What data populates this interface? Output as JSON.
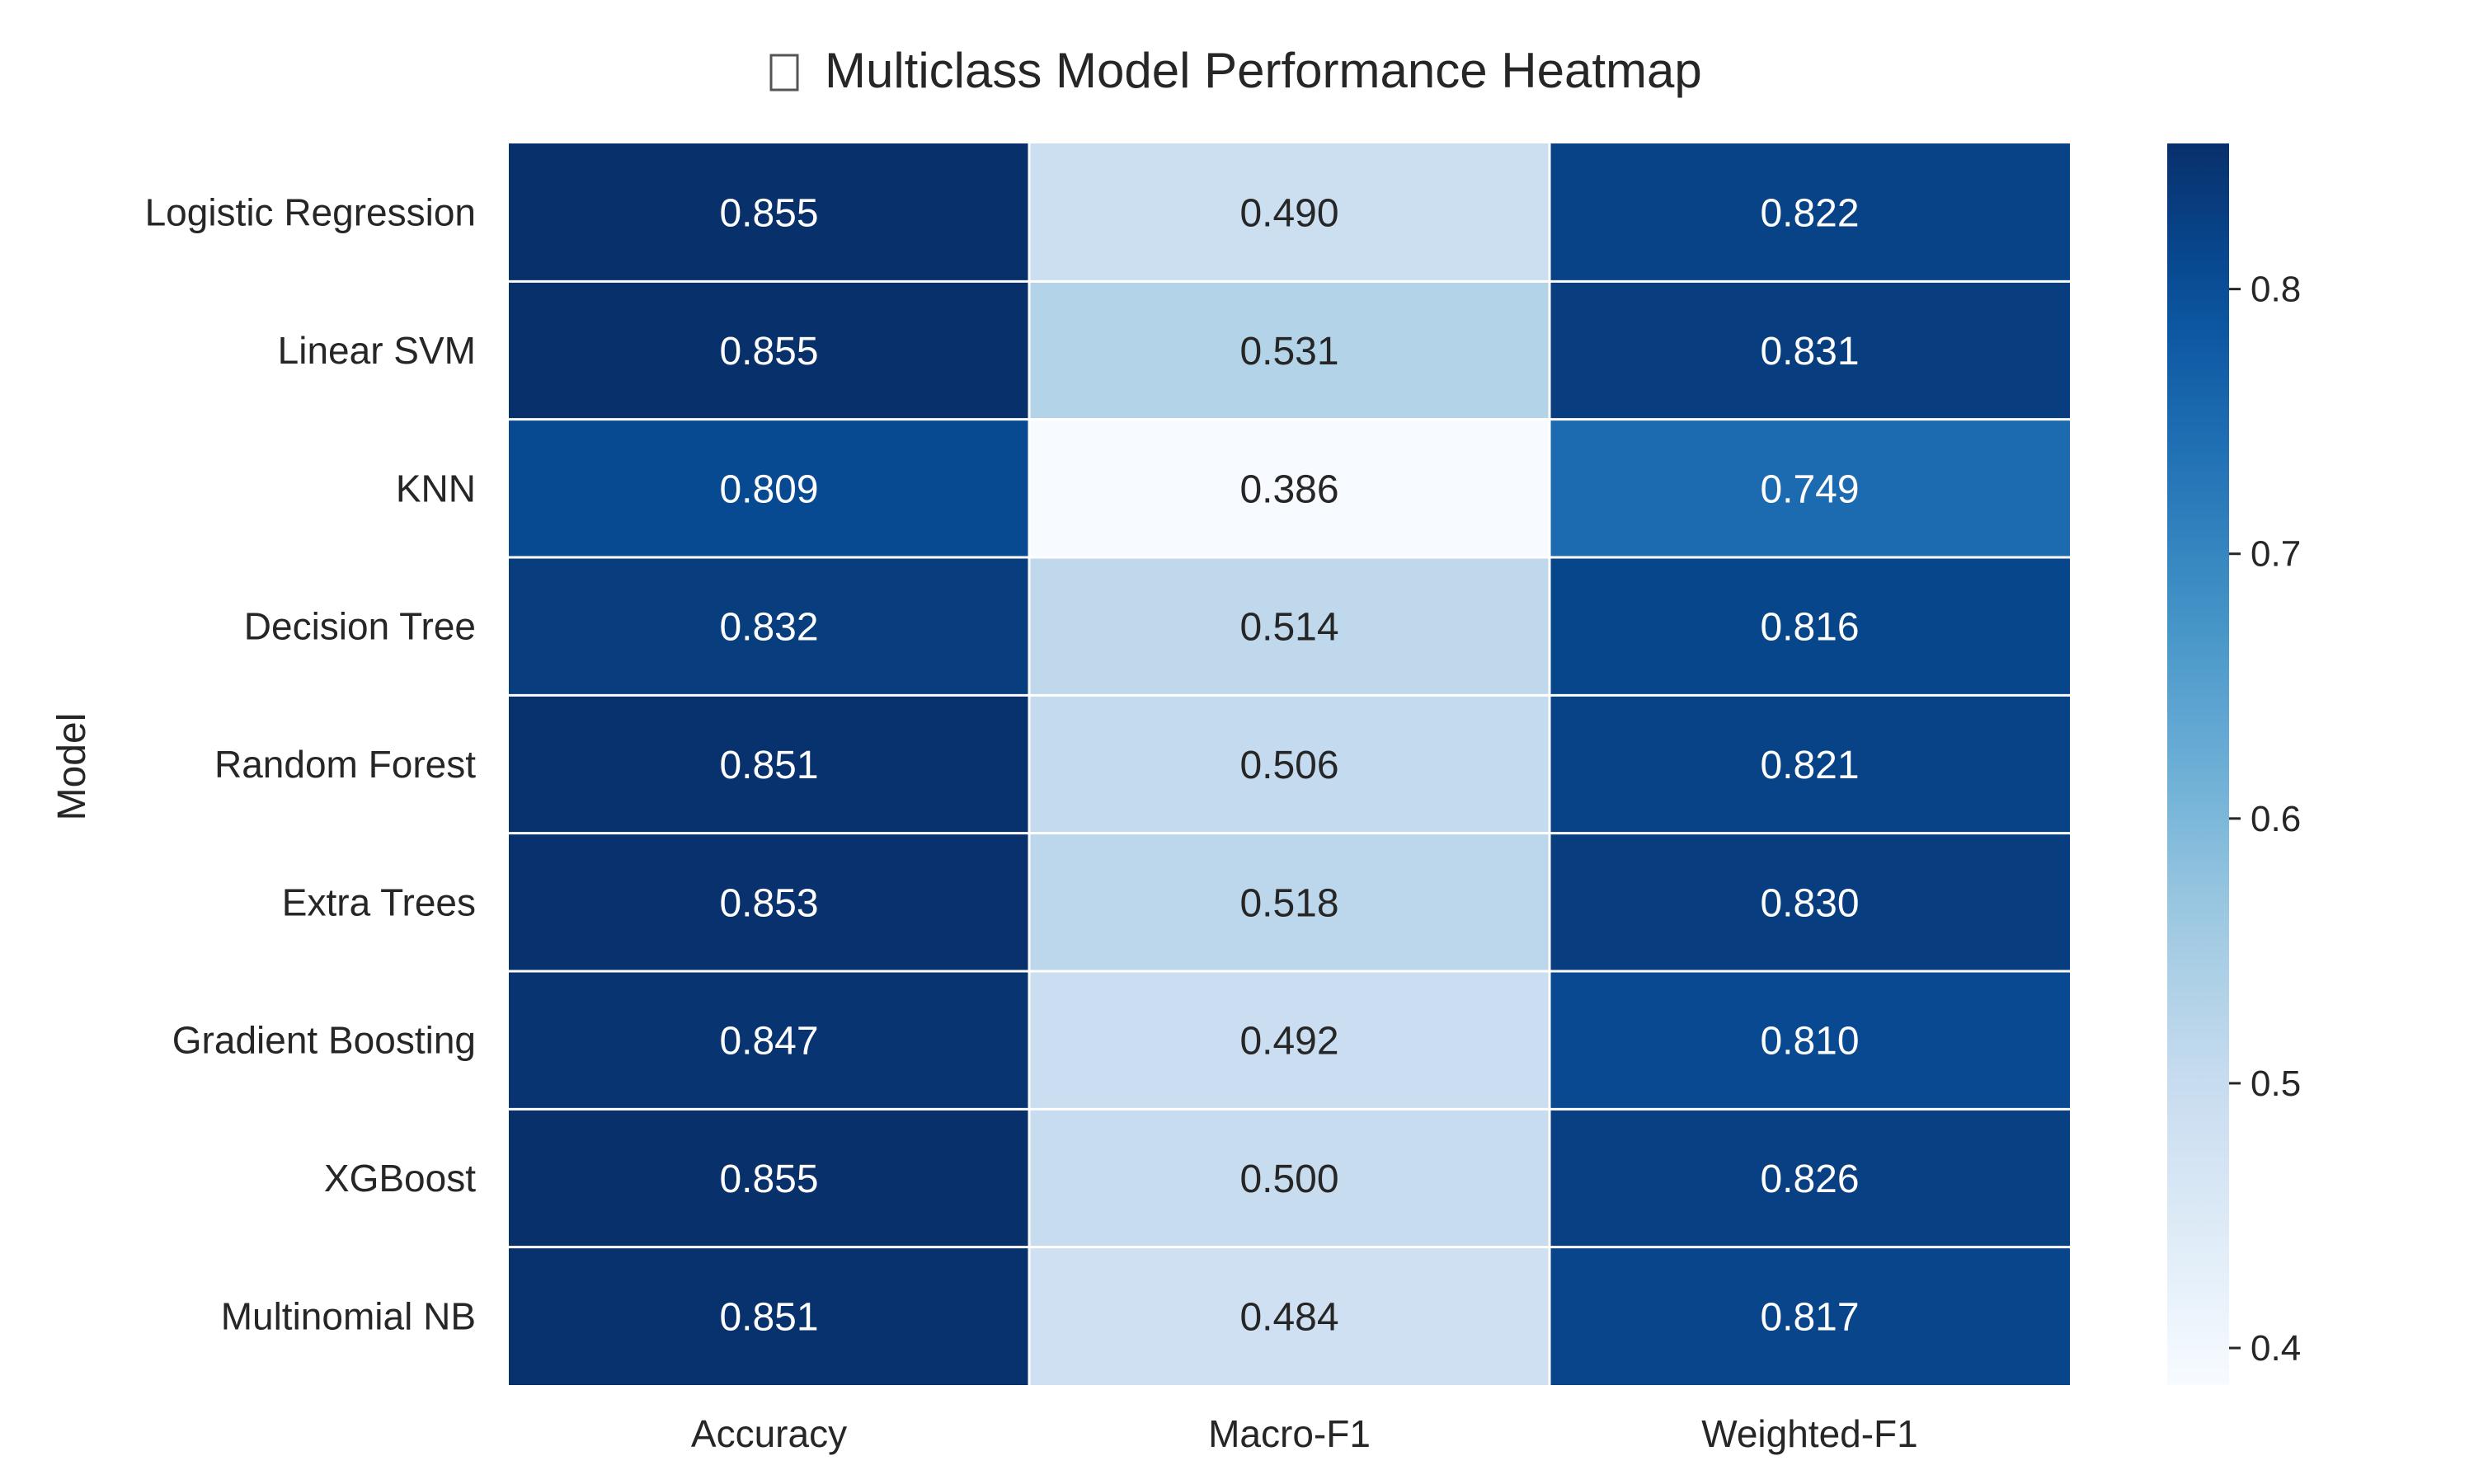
{
  "chart_data": {
    "type": "heatmap",
    "title": "Multiclass Model Performance Heatmap",
    "title_icon": "chart-icon",
    "ylabel": "Model",
    "xlabel": "",
    "rows": [
      "Logistic Regression",
      "Linear SVM",
      "KNN",
      "Decision Tree",
      "Random Forest",
      "Extra Trees",
      "Gradient Boosting",
      "XGBoost",
      "Multinomial NB"
    ],
    "columns": [
      "Accuracy",
      "Macro-F1",
      "Weighted-F1"
    ],
    "values": [
      [
        0.855,
        0.49,
        0.822
      ],
      [
        0.855,
        0.531,
        0.831
      ],
      [
        0.809,
        0.386,
        0.749
      ],
      [
        0.832,
        0.514,
        0.816
      ],
      [
        0.851,
        0.506,
        0.821
      ],
      [
        0.853,
        0.518,
        0.83
      ],
      [
        0.847,
        0.492,
        0.81
      ],
      [
        0.855,
        0.5,
        0.826
      ],
      [
        0.851,
        0.484,
        0.817
      ]
    ],
    "value_labels": [
      [
        "0.855",
        "0.490",
        "0.822"
      ],
      [
        "0.855",
        "0.531",
        "0.831"
      ],
      [
        "0.809",
        "0.386",
        "0.749"
      ],
      [
        "0.832",
        "0.514",
        "0.816"
      ],
      [
        "0.851",
        "0.506",
        "0.821"
      ],
      [
        "0.853",
        "0.518",
        "0.830"
      ],
      [
        "0.847",
        "0.492",
        "0.810"
      ],
      [
        "0.855",
        "0.500",
        "0.826"
      ],
      [
        "0.851",
        "0.484",
        "0.817"
      ]
    ],
    "colormap": "Blues",
    "vmin": 0.386,
    "vmax": 0.855,
    "colorbar": {
      "ticks": [
        0.4,
        0.5,
        0.6,
        0.7,
        0.8
      ],
      "tick_labels": [
        "0.4",
        "0.5",
        "0.6",
        "0.7",
        "0.8"
      ],
      "placement": "right"
    },
    "colors": {
      "text_dark": "#262626",
      "text_light": "#ffffff",
      "grid_line": "#ffffff"
    }
  }
}
